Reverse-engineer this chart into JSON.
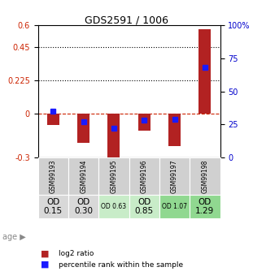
{
  "title": "GDS2591 / 1006",
  "samples": [
    "GSM99193",
    "GSM99194",
    "GSM99195",
    "GSM99196",
    "GSM99197",
    "GSM99198"
  ],
  "log2_ratio": [
    -0.08,
    -0.2,
    -0.3,
    -0.12,
    -0.22,
    0.57
  ],
  "percentile_rank": [
    35,
    27,
    22,
    28,
    29,
    68
  ],
  "age_labels": [
    "OD\n0.15",
    "OD\n0.30",
    "OD 0.63",
    "OD\n0.85",
    "OD 1.07",
    "OD\n1.29"
  ],
  "age_colors": [
    "#d8d8d8",
    "#d8d8d8",
    "#c8ecc8",
    "#c8ecc8",
    "#90d890",
    "#90d890"
  ],
  "age_fontsize_large": [
    true,
    true,
    false,
    true,
    false,
    true
  ],
  "ylim_left": [
    -0.3,
    0.6
  ],
  "ylim_right": [
    0,
    100
  ],
  "yticks_left": [
    -0.3,
    0,
    0.225,
    0.45,
    0.6
  ],
  "yticks_right": [
    0,
    25,
    50,
    75,
    100
  ],
  "hlines_dotted": [
    0.225,
    0.45
  ],
  "bar_color": "#b22222",
  "dot_color": "#1a1aff",
  "bar_width": 0.4,
  "background_color": "#ffffff",
  "tick_color_left": "#cc2200",
  "tick_color_right": "#0000cc"
}
